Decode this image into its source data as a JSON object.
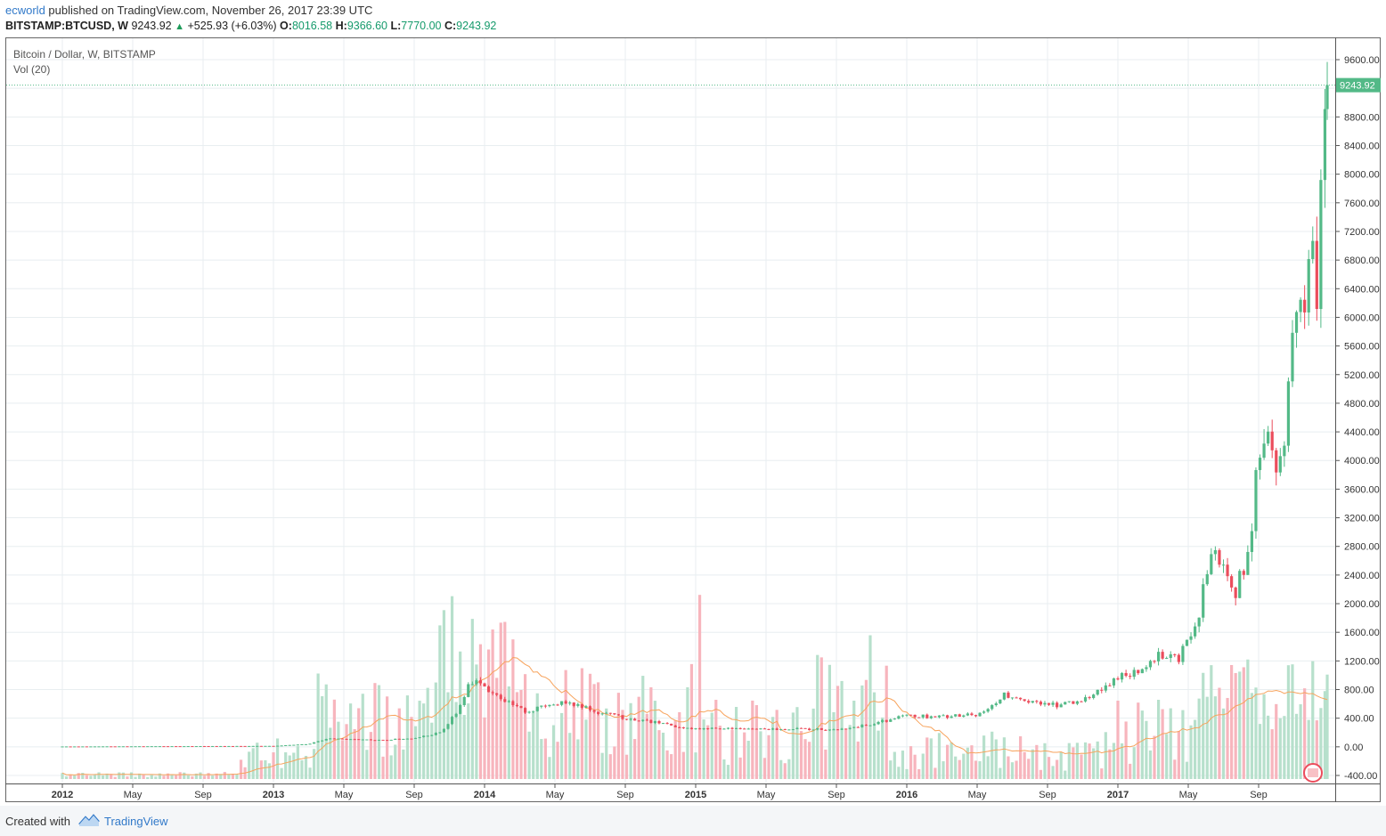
{
  "publish": {
    "author": "ecworld",
    "text": "published on TradingView.com, November 26, 2017 23:39 UTC"
  },
  "symbol": {
    "ticker": "BITSTAMP:BTCUSD, W",
    "last": "9243.92",
    "change": "+525.93 (+6.03%)",
    "open_label": "O:",
    "open": "8016.58",
    "high_label": "H:",
    "high": "9366.60",
    "low_label": "L:",
    "low": "7770.00",
    "close_label": "C:",
    "close": "9243.92"
  },
  "legend": {
    "series": "Bitcoin / Dollar, W, BITSTAMP",
    "volume": "Vol (20)"
  },
  "footer": {
    "created_with": "Created with",
    "brand": "TradingView"
  },
  "colors": {
    "up": "#53b987",
    "down": "#eb4d5c",
    "vol_up": "#b7e0cc",
    "vol_down": "#f7b5bd",
    "vol_ma": "#f7a35c",
    "grid": "#e8eef0",
    "last_price": "#53b987"
  },
  "chart_data": {
    "type": "candlestick",
    "title": "Bitcoin / Dollar, W, BITSTAMP",
    "ylim": [
      -400,
      9600
    ],
    "y_ticks": [
      "9600.00",
      "8800.00",
      "8400.00",
      "8000.00",
      "7600.00",
      "7200.00",
      "6800.00",
      "6400.00",
      "6000.00",
      "5600.00",
      "5200.00",
      "4800.00",
      "4400.00",
      "4000.00",
      "3600.00",
      "3200.00",
      "2800.00",
      "2400.00",
      "2000.00",
      "1600.00",
      "1200.00",
      "800.00",
      "400.00",
      "0.00",
      "-400.00"
    ],
    "last_price_label": "9243.92",
    "x_ticks": [
      "2012",
      "May",
      "Sep",
      "2013",
      "May",
      "Sep",
      "2014",
      "May",
      "Sep",
      "2015",
      "May",
      "Sep",
      "2016",
      "May",
      "Sep",
      "2017",
      "May",
      "Sep"
    ],
    "x_tick_months": [
      0,
      4,
      8,
      12,
      16,
      20,
      24,
      28,
      32,
      36,
      40,
      44,
      48,
      52,
      56,
      60,
      64,
      68
    ],
    "bold_x_ticks": [
      "2012",
      "2013",
      "2014",
      "2015",
      "2016",
      "2017"
    ],
    "anchors": [
      [
        0.0,
        5
      ],
      [
        12.0,
        13
      ],
      [
        14.0,
        40
      ],
      [
        15.2,
        120
      ],
      [
        16.0,
        110
      ],
      [
        18.0,
        95
      ],
      [
        20.0,
        120
      ],
      [
        21.5,
        200
      ],
      [
        22.5,
        500
      ],
      [
        23.2,
        900
      ],
      [
        24.0,
        850
      ],
      [
        25.0,
        650
      ],
      [
        26.5,
        480
      ],
      [
        27.8,
        620
      ],
      [
        29.0,
        600
      ],
      [
        30.5,
        480
      ],
      [
        32.0,
        400
      ],
      [
        34.0,
        330
      ],
      [
        35.4,
        260
      ],
      [
        36.5,
        250
      ],
      [
        38.0,
        260
      ],
      [
        40.0,
        240
      ],
      [
        42.0,
        250
      ],
      [
        44.0,
        240
      ],
      [
        46.0,
        320
      ],
      [
        48.0,
        430
      ],
      [
        50.0,
        420
      ],
      [
        52.0,
        450
      ],
      [
        53.5,
        720
      ],
      [
        55.0,
        620
      ],
      [
        56.5,
        580
      ],
      [
        58.0,
        650
      ],
      [
        60.0,
        960
      ],
      [
        61.5,
        1100
      ],
      [
        62.5,
        1300
      ],
      [
        63.5,
        1250
      ],
      [
        64.5,
        1800
      ],
      [
        65.5,
        2800
      ],
      [
        66.0,
        2600
      ],
      [
        66.7,
        2200
      ],
      [
        67.5,
        2700
      ],
      [
        68.0,
        4100
      ],
      [
        68.5,
        4600
      ],
      [
        69.0,
        3700
      ],
      [
        69.5,
        4400
      ],
      [
        70.0,
        5800
      ],
      [
        70.6,
        6100
      ],
      [
        71.0,
        7300
      ],
      [
        71.3,
        5900
      ],
      [
        71.6,
        8000
      ],
      [
        71.9,
        9243.92
      ]
    ],
    "volume_scale_note": "volume bars drawn in lower pane, peaks near early 2014 and late 2015"
  }
}
